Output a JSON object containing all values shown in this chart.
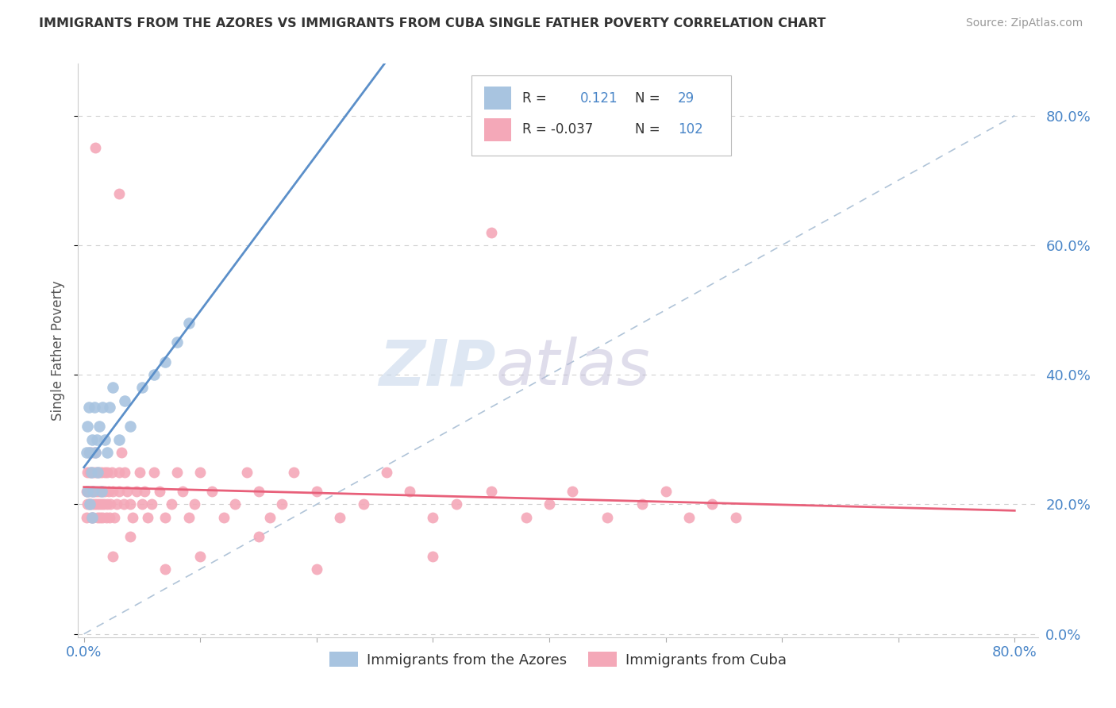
{
  "title": "IMMIGRANTS FROM THE AZORES VS IMMIGRANTS FROM CUBA SINGLE FATHER POVERTY CORRELATION CHART",
  "source": "Source: ZipAtlas.com",
  "ylabel": "Single Father Poverty",
  "yticks": [
    "0.0%",
    "20.0%",
    "40.0%",
    "60.0%",
    "80.0%"
  ],
  "ytick_vals": [
    0.0,
    0.2,
    0.4,
    0.6,
    0.8
  ],
  "xlim": [
    0.0,
    0.8
  ],
  "ylim": [
    0.0,
    0.8
  ],
  "azores_color": "#a8c4e0",
  "cuba_color": "#f4a8b8",
  "azores_line_color": "#5b8fc9",
  "cuba_line_color": "#e8607a",
  "diag_line_color": "#b0c4d8",
  "watermark_zip_color": "#ccd8e8",
  "watermark_atlas_color": "#c8c0d8",
  "legend_box_color": "#dddddd",
  "azores_label": "Immigrants from the Azores",
  "cuba_label": "Immigrants from Cuba",
  "r1": "0.121",
  "n1": "29",
  "r2": "-0.037",
  "n2": "102"
}
